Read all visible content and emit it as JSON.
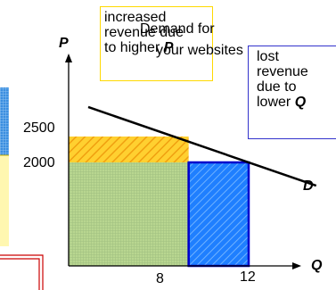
{
  "title_line1": "Demand for",
  "title_line2": "your websites",
  "y_axis_label": "P",
  "x_axis_label": "Q",
  "curve_label": "D",
  "y_ticks": [
    "2500",
    "2000"
  ],
  "x_ticks": [
    "8",
    "12"
  ],
  "annotation_increased": {
    "line1": "increased",
    "line2": "revenue due",
    "line3_prefix": "to higher ",
    "line3_var": "P"
  },
  "annotation_lost": {
    "line1": "lost",
    "line2": "revenue",
    "line3": "due to",
    "line4_prefix": "lower ",
    "line4_var": "Q"
  },
  "chart_data": {
    "type": "area",
    "demand_points": [
      {
        "q": 0,
        "p": 3200
      },
      {
        "q": 12,
        "p": 2000
      },
      {
        "q": 16.5,
        "p": 1550
      }
    ],
    "regions": [
      {
        "id": "increased-revenue",
        "q": [
          0,
          8
        ],
        "p": [
          2000,
          2500
        ],
        "fill": "#ffd030",
        "hatch": "#f0a010"
      },
      {
        "id": "common-revenue",
        "q": [
          0,
          8
        ],
        "p": [
          0,
          2000
        ],
        "fill": "#b8d690",
        "hatch": "#9fbf80"
      },
      {
        "id": "lost-revenue",
        "q": [
          8,
          12
        ],
        "p": [
          0,
          2000
        ],
        "fill": "#1f7fff",
        "hatch": "#6fb2ff",
        "border": "#0000cc"
      }
    ]
  },
  "colors": {
    "axis": "#000000",
    "annotation_box_yellow": "#ffd900",
    "annotation_box_blue": "#3333cc",
    "side_blue": "#3a8ee0",
    "side_yellow": "#fff7b0",
    "side_red": "#cc0000"
  }
}
